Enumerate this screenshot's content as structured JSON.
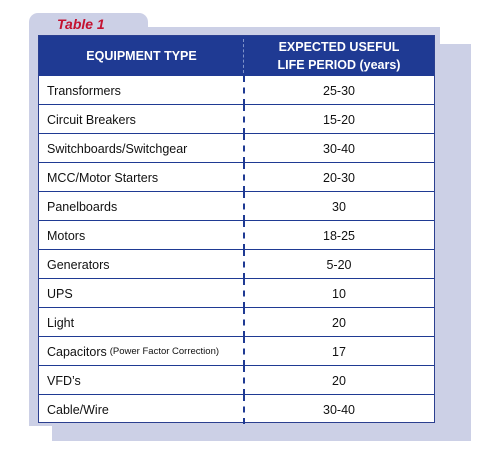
{
  "table_label": "Table 1",
  "header": {
    "col1": "EQUIPMENT TYPE",
    "col2_line1": "EXPECTED USEFUL",
    "col2_line2": "LIFE PERIOD (years)"
  },
  "rows": [
    {
      "equipment": "Transformers",
      "note": "",
      "life": "25-30"
    },
    {
      "equipment": "Circuit Breakers",
      "note": "",
      "life": "15-20"
    },
    {
      "equipment": "Switchboards/Switchgear",
      "note": "",
      "life": "30-40"
    },
    {
      "equipment": "MCC/Motor Starters",
      "note": "",
      "life": "20-30"
    },
    {
      "equipment": "Panelboards",
      "note": "",
      "life": "30"
    },
    {
      "equipment": "Motors",
      "note": "",
      "life": "18-25"
    },
    {
      "equipment": "Generators",
      "note": "",
      "life": "5-20"
    },
    {
      "equipment": "UPS",
      "note": "",
      "life": "10"
    },
    {
      "equipment": "Light",
      "note": "",
      "life": "20"
    },
    {
      "equipment": "Capacitors",
      "note": "(Power Factor Correction)",
      "life": "17"
    },
    {
      "equipment": "VFD’s",
      "note": "",
      "life": "20"
    },
    {
      "equipment": "Cable/Wire",
      "note": "",
      "life": "30-40"
    }
  ],
  "colors": {
    "header_bg": "#1f3a93",
    "panel_bg": "#ccd0e6",
    "label_red": "#c41230"
  }
}
